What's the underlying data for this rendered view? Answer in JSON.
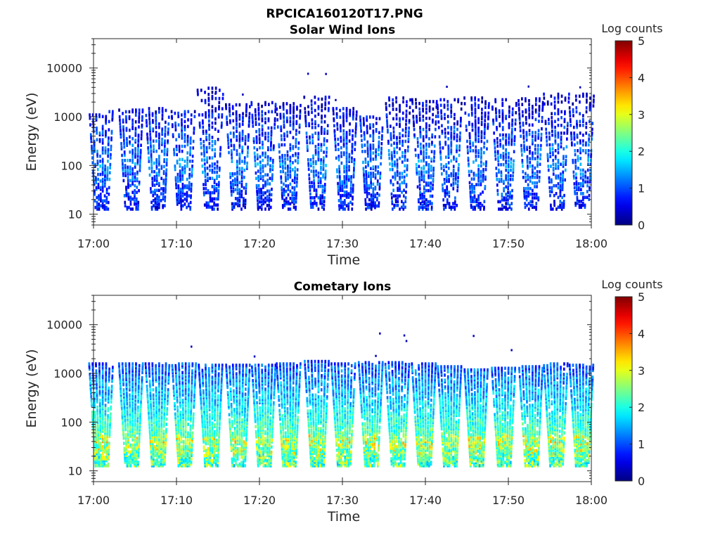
{
  "figure_title": "RPCICA160120T17.PNG",
  "chart_data": [
    {
      "type": "heatmap",
      "title": "Solar Wind Ions",
      "xlabel": "Time",
      "ylabel": "Energy (eV)",
      "y_scale": "log",
      "ylim": [
        6,
        40000
      ],
      "y_ticks": [
        10,
        100,
        1000,
        10000
      ],
      "y_tick_labels": [
        "10",
        "100",
        "1000",
        "10000"
      ],
      "x_ticks": [
        "17:00",
        "17:10",
        "17:20",
        "17:30",
        "17:40",
        "17:50",
        "18:00"
      ],
      "xlim_minutes": [
        0,
        60
      ],
      "colorbar": {
        "label": "Log counts",
        "min": 0,
        "max": 5,
        "ticks": [
          "0",
          "1",
          "2",
          "3",
          "4",
          "5"
        ],
        "colormap": "jet"
      },
      "sweep_minutes": [
        1.0,
        4.6,
        7.8,
        10.9,
        14.2,
        17.5,
        20.6,
        23.6,
        27.0,
        30.4,
        33.6,
        36.8,
        40.0,
        43.0,
        46.3,
        49.6,
        52.8,
        55.9,
        58.9
      ],
      "sweep_max_energy_eV": [
        1300,
        1400,
        1500,
        1300,
        4000,
        1800,
        2000,
        1900,
        2600,
        1500,
        1000,
        2500,
        2300,
        2300,
        2500,
        2300,
        2400,
        3000,
        3000
      ],
      "energy_peak_eV": 100,
      "counts_level": 1.2
    },
    {
      "type": "heatmap",
      "title": "Cometary Ions",
      "xlabel": "Time",
      "ylabel": "Energy (eV)",
      "y_scale": "log",
      "ylim": [
        6,
        40000
      ],
      "y_ticks": [
        10,
        100,
        1000,
        10000
      ],
      "y_tick_labels": [
        "10",
        "100",
        "1000",
        "10000"
      ],
      "x_ticks": [
        "17:00",
        "17:10",
        "17:20",
        "17:30",
        "17:40",
        "17:50",
        "18:00"
      ],
      "xlim_minutes": [
        0,
        60
      ],
      "colorbar": {
        "label": "Log counts",
        "min": 0,
        "max": 5,
        "ticks": [
          "0",
          "1",
          "2",
          "3",
          "4",
          "5"
        ],
        "colormap": "jet"
      },
      "sweep_minutes": [
        1.0,
        4.6,
        7.8,
        11.0,
        14.2,
        17.5,
        20.6,
        23.6,
        27.0,
        30.2,
        33.5,
        36.7,
        39.9,
        43.0,
        46.2,
        49.5,
        52.8,
        55.8,
        58.9
      ],
      "sweep_max_energy_eV": [
        1600,
        1600,
        1600,
        1600,
        1500,
        1500,
        1500,
        1600,
        1800,
        1600,
        1700,
        1700,
        1600,
        1400,
        1200,
        1300,
        1400,
        1600,
        1500
      ],
      "energy_peak_eV": 40,
      "counts_level": 2.4
    }
  ]
}
